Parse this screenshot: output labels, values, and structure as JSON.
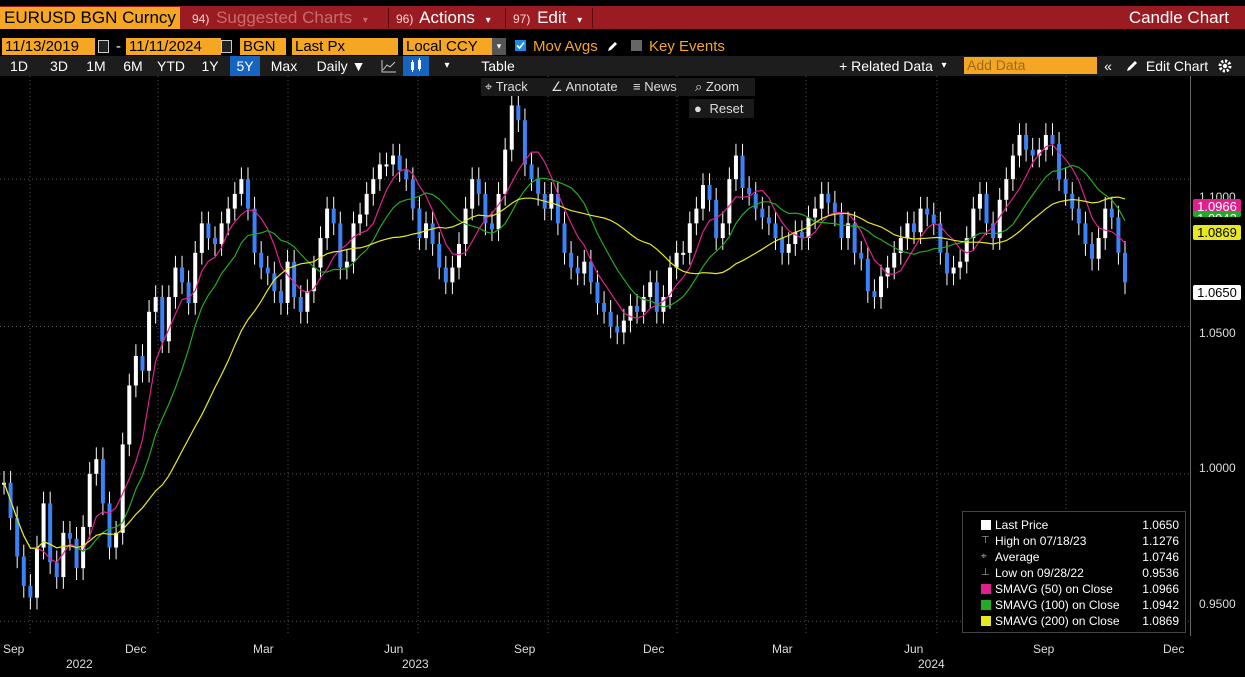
{
  "titlebar": {
    "security": "EURUSD BGN Curncy",
    "suggested": {
      "num": "94)",
      "label": "Suggested Charts"
    },
    "actions": {
      "num": "96)",
      "label": "Actions"
    },
    "edit": {
      "num": "97)",
      "label": "Edit"
    },
    "chart_type": "Candle Chart"
  },
  "params": {
    "start_date": "11/13/2019",
    "dash": "-",
    "end_date": "11/11/2024",
    "source": "BGN",
    "field": "Last Px",
    "currency": "Local CCY",
    "mov_avgs": "Mov Avgs",
    "key_events": "Key Events"
  },
  "periods": [
    "1D",
    "3D",
    "1M",
    "6M",
    "YTD",
    "1Y",
    "5Y",
    "Max"
  ],
  "active_period": "5Y",
  "frequency": "Daily ▼",
  "table_label": "Table",
  "related_data": "+ Related Data",
  "add_data_placeholder": "Add Data",
  "edit_chart": "Edit Chart",
  "tools": {
    "track": "Track",
    "annotate": "Annotate",
    "news": "News",
    "zoom": "Zoom",
    "reset": "Reset"
  },
  "colors": {
    "candles": "#3b82f6",
    "sma50": "#e0208f",
    "sma100": "#22aa22",
    "sma200": "#e8e820",
    "accent": "#f5a623",
    "brand_bar": "#9b1b22"
  },
  "legend": [
    {
      "label": "Last Price",
      "value": "1.0650",
      "symbol": "square-white"
    },
    {
      "label": "High on 07/18/23",
      "value": "1.1276",
      "symbol": "high-icon"
    },
    {
      "label": "Average",
      "value": "1.0746",
      "symbol": "average-icon"
    },
    {
      "label": "Low on 09/28/22",
      "value": "0.9536",
      "symbol": "low-icon"
    },
    {
      "label": "SMAVG (50)  on Close",
      "value": "1.0966",
      "symbol": "square-magenta"
    },
    {
      "label": "SMAVG (100)  on Close",
      "value": "1.0942",
      "symbol": "square-green"
    },
    {
      "label": "SMAVG (200)  on Close",
      "value": "1.0869",
      "symbol": "square-yellow"
    }
  ],
  "chart_data": {
    "type": "line",
    "title": "",
    "xlabel": "",
    "ylabel": "",
    "ylim": [
      0.945,
      1.135
    ],
    "yticks": [
      "1.1000",
      "1.0500",
      "1.0000",
      "0.9500"
    ],
    "x_month_labels": [
      "Sep",
      "Dec",
      "Mar",
      "Jun",
      "Sep",
      "Dec",
      "Mar",
      "Jun",
      "Sep",
      "Dec"
    ],
    "x_year_labels": [
      "2022",
      "2023",
      "2024"
    ],
    "price_tags": [
      "1.0966",
      "1.0942",
      "1.0869",
      "1.0650"
    ],
    "series": [
      {
        "name": "Last Price",
        "values": [
          0.997,
          0.985,
          0.972,
          0.962,
          0.958,
          0.975,
          0.99,
          0.97,
          0.965,
          0.98,
          0.978,
          0.968,
          0.982,
          1.0,
          1.005,
          0.99,
          0.975,
          0.98,
          1.01,
          1.03,
          1.04,
          1.035,
          1.055,
          1.06,
          1.045,
          1.06,
          1.07,
          1.065,
          1.058,
          1.075,
          1.085,
          1.08,
          1.078,
          1.085,
          1.09,
          1.095,
          1.1,
          1.09,
          1.075,
          1.07,
          1.068,
          1.062,
          1.058,
          1.072,
          1.06,
          1.055,
          1.062,
          1.07,
          1.08,
          1.09,
          1.085,
          1.07,
          1.072,
          1.085,
          1.088,
          1.095,
          1.1,
          1.105,
          1.105,
          1.108,
          1.103,
          1.1,
          1.09,
          1.08,
          1.085,
          1.078,
          1.07,
          1.065,
          1.07,
          1.078,
          1.09,
          1.1,
          1.095,
          1.085,
          1.083,
          1.095,
          1.11,
          1.125,
          1.12,
          1.105,
          1.1,
          1.095,
          1.09,
          1.095,
          1.085,
          1.075,
          1.07,
          1.068,
          1.072,
          1.065,
          1.058,
          1.055,
          1.05,
          1.048,
          1.052,
          1.057,
          1.055,
          1.06,
          1.065,
          1.055,
          1.06,
          1.07,
          1.075,
          1.075,
          1.085,
          1.09,
          1.098,
          1.093,
          1.08,
          1.085,
          1.1,
          1.108,
          1.097,
          1.095,
          1.09,
          1.087,
          1.085,
          1.08,
          1.075,
          1.078,
          1.082,
          1.08,
          1.087,
          1.09,
          1.095,
          1.092,
          1.088,
          1.08,
          1.085,
          1.075,
          1.073,
          1.062,
          1.06,
          1.067,
          1.07,
          1.075,
          1.08,
          1.085,
          1.082,
          1.09,
          1.088,
          1.085,
          1.075,
          1.068,
          1.07,
          1.072,
          1.08,
          1.09,
          1.095,
          1.085,
          1.08,
          1.093,
          1.1,
          1.108,
          1.115,
          1.11,
          1.108,
          1.11,
          1.115,
          1.112,
          1.1,
          1.095,
          1.09,
          1.085,
          1.078,
          1.073,
          1.08,
          1.09,
          1.087,
          1.075,
          1.065
        ]
      },
      {
        "name": "SMAVG (50)",
        "values": []
      },
      {
        "name": "SMAVG (100)",
        "values": []
      },
      {
        "name": "SMAVG (200)",
        "values": []
      }
    ]
  }
}
